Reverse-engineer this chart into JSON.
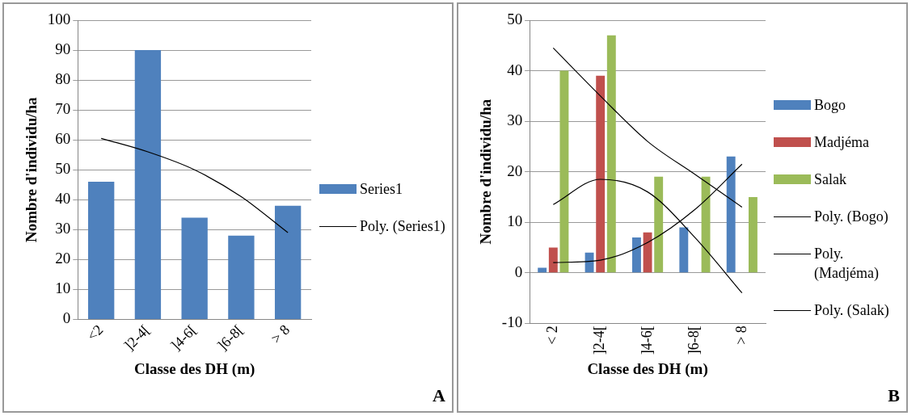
{
  "chart_data": [
    {
      "type": "bar",
      "xlabel": "Classe des DH (m)",
      "ylabel": "Nombre d'individu/ha",
      "categories": [
        "<2",
        "]2-4[",
        "]4-6[",
        "]6-8[",
        "> 8"
      ],
      "ylim": [
        0,
        100
      ],
      "yticks": [
        0,
        10,
        20,
        30,
        40,
        50,
        60,
        70,
        80,
        90,
        100
      ],
      "grid": "y",
      "legend": "right",
      "marker": "none",
      "annotations": [
        "A"
      ],
      "series": [
        {
          "name": "Series1",
          "color": "#4f81bd",
          "values": [
            46,
            90,
            34,
            28,
            38
          ]
        },
        {
          "name": "Poly. (Series1)",
          "type": "line",
          "color": "#000000",
          "values": [
            60.5,
            56,
            50,
            41,
            29
          ]
        }
      ]
    },
    {
      "type": "bar",
      "xlabel": "Classe des DH (m)",
      "ylabel": "Nombre d'individu/ha",
      "categories": [
        "< 2",
        "]2-4[",
        "]4-6[",
        "]6-8[",
        "> 8"
      ],
      "ylim": [
        -10,
        50
      ],
      "yticks": [
        -10,
        0,
        10,
        20,
        30,
        40,
        50
      ],
      "grid": "y",
      "legend": "right",
      "marker": "none",
      "annotations": [
        "B"
      ],
      "series": [
        {
          "name": "Bogo",
          "color": "#4f81bd",
          "values": [
            1,
            4,
            7,
            9,
            23
          ]
        },
        {
          "name": "Madjéma",
          "color": "#c0504d",
          "values": [
            5,
            39,
            8,
            0,
            0
          ]
        },
        {
          "name": "Salak",
          "color": "#9bbb59",
          "values": [
            40,
            47,
            19,
            19,
            15
          ]
        },
        {
          "name": "Poly. (Bogo)",
          "type": "line",
          "color": "#000000",
          "values": [
            2,
            2.5,
            6,
            12.5,
            21.5
          ]
        },
        {
          "name": "Poly. (Madjéma)",
          "type": "line",
          "color": "#000000",
          "values": [
            13.5,
            18.5,
            16,
            7,
            -4
          ]
        },
        {
          "name": "Poly. (Salak)",
          "type": "line",
          "color": "#000000",
          "values": [
            44.5,
            35,
            26,
            19.5,
            13
          ]
        }
      ]
    }
  ]
}
